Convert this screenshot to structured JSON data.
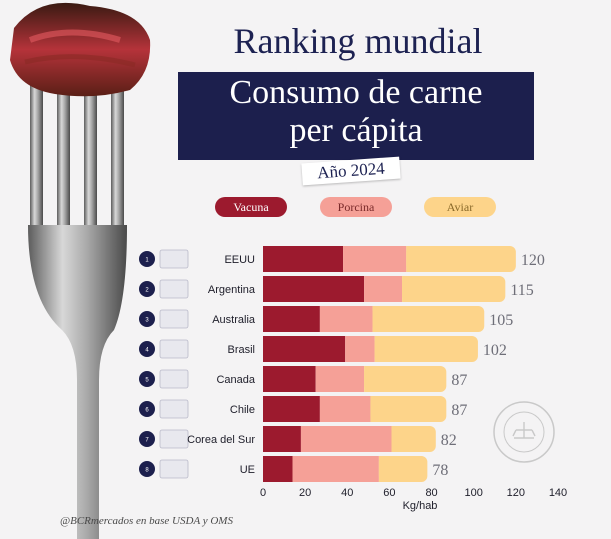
{
  "header": {
    "title_line1": "Ranking mundial",
    "title_line2a": "Consumo de carne",
    "title_line2b": "per cápita",
    "year": "Año 2024"
  },
  "legend": [
    {
      "label": "Vacuna",
      "color": "#9c1a2e",
      "text_color": "#ffffff"
    },
    {
      "label": "Porcina",
      "color": "#f5a097",
      "text_color": "#7a2a2a"
    },
    {
      "label": "Aviar",
      "color": "#fdd48a",
      "text_color": "#8a6a2a"
    }
  ],
  "source": "@BCRmercados en base  USDA y OMS",
  "chart_data": {
    "type": "bar",
    "orientation": "horizontal",
    "stacked": true,
    "categories": [
      "EEUU",
      "Argentina",
      "Australia",
      "Brasil",
      "Canada",
      "Chile",
      "Corea del Sur",
      "UE"
    ],
    "ranks": [
      "1",
      "2",
      "3",
      "4",
      "5",
      "6",
      "7",
      "8"
    ],
    "series": [
      {
        "name": "Vacuna",
        "color": "#9c1a2e",
        "values": [
          38,
          48,
          27,
          39,
          25,
          27,
          18,
          14
        ]
      },
      {
        "name": "Porcina",
        "color": "#f5a097",
        "values": [
          30,
          18,
          25,
          14,
          23,
          24,
          43,
          41
        ]
      },
      {
        "name": "Aviar",
        "color": "#fdd48a",
        "values": [
          52,
          49,
          53,
          49,
          39,
          36,
          21,
          23
        ]
      }
    ],
    "totals": [
      "120",
      "115",
      "105",
      "102",
      "87",
      "87",
      "82",
      "78"
    ],
    "xticks": [
      "0",
      "20",
      "40",
      "60",
      "80",
      "100",
      "120",
      "140"
    ],
    "xlim": [
      0,
      140
    ],
    "xlabel": "Kg/hab",
    "grid": false
  }
}
